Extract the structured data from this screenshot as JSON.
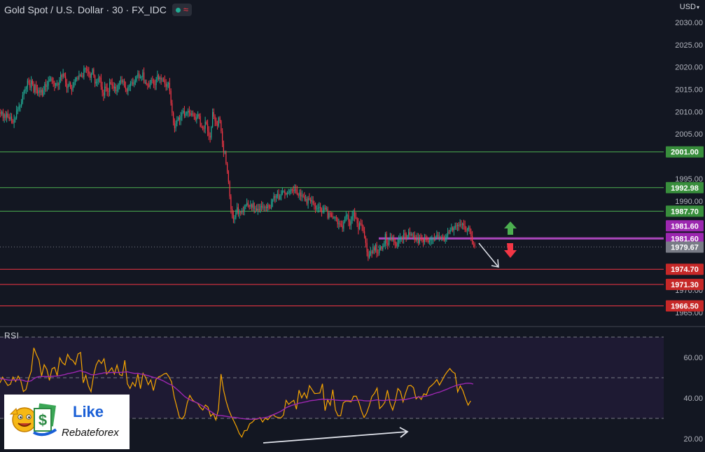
{
  "header": {
    "title": "Gold Spot / U.S. Dollar · 30 · FX_IDC",
    "currency": "USD",
    "colors": {
      "up": "#22ab94",
      "down": "#f23645",
      "background": "#131722"
    }
  },
  "chart_data": [
    {
      "type": "candlestick",
      "title": "Gold Spot / U.S. Dollar · 30 · FX_IDC",
      "y_axis_unit": "USD",
      "y_ticks": [
        2030.0,
        2025.0,
        2020.0,
        2015.0,
        2010.0,
        2005.0,
        1995.0,
        1990.0,
        1970.0,
        1965.0
      ],
      "ylim": [
        1963.5,
        2033
      ],
      "close_path": [
        2009.5,
        2010,
        2008.6,
        2009.4,
        2008.6,
        2009.6,
        2008.8,
        2008.3,
        2008.9,
        2008,
        2007.5,
        2008.2,
        2008.6,
        2010.2,
        2010.5,
        2011.2,
        2011.3,
        2012.2,
        2013.7,
        2014.6,
        2015.1,
        2015.5,
        2017,
        2016.4,
        2015.4,
        2017,
        2016.2,
        2014.4,
        2016,
        2014.9,
        2014.1,
        2014.8,
        2014.3,
        2014.9,
        2013.7,
        2014.8,
        2016.2,
        2015.6,
        2015.8,
        2016.9,
        2017.3,
        2017.4,
        2016.8,
        2016.5,
        2015.8,
        2016.3,
        2016.3,
        2016,
        2017.1,
        2018.2,
        2017.8,
        2018.5,
        2017.9,
        2016.5,
        2015.3,
        2015.8,
        2016.5,
        2015.3,
        2014.8,
        2015.6,
        2016.6,
        2017.3,
        2017.6,
        2017.4,
        2018.2,
        2018,
        2018.1,
        2017.8,
        2019.7,
        2019.7,
        2019.6,
        2019.1,
        2018.5,
        2017.6,
        2018.5,
        2019.5,
        2018.1,
        2016.3,
        2016.7,
        2016.7,
        2017.7,
        2017.6,
        2015.6,
        2014.3,
        2013.6,
        2015.6,
        2015.4,
        2014.6,
        2014.5,
        2016.6,
        2016.3,
        2015.8,
        2015.2,
        2015.6,
        2014.6,
        2014.9,
        2016.2,
        2016.3,
        2017.1,
        2016.6,
        2016.9,
        2015.6,
        2015.1,
        2014.5,
        2015.6,
        2015.7,
        2016.4,
        2016.6,
        2016.1,
        2016.7,
        2016.9,
        2017.9,
        2018.6,
        2017.6,
        2017.8,
        2017.8,
        2018.8,
        2016.6,
        2016.6,
        2016.1,
        2015.9,
        2015.6,
        2016.4,
        2017.1,
        2017,
        2016.1,
        2016,
        2017.2,
        2018.2,
        2017.3,
        2017.6,
        2017.2,
        2017.2,
        2017,
        2016.3,
        2015.6,
        2016.2,
        2016.4,
        2014.7,
        2011.9,
        2009.8,
        2007.5,
        2006.3,
        2007.3,
        2008.2,
        2008.7,
        2008.1,
        2009,
        2009.8,
        2010.2,
        2009.1,
        2009.6,
        2009.9,
        2010.2,
        2009.7,
        2009.2,
        2009.6,
        2009.4,
        2008.9,
        2008.2,
        2008.7,
        2009.4,
        2009,
        2006.7,
        2006.6,
        2006.3,
        2006.2,
        2007.7,
        2007.2,
        2005.7,
        2004.6,
        2004.2,
        2006.6,
        2009.9,
        2008.9,
        2007.9,
        2007.1,
        2006.9,
        2008.7,
        2007.9,
        2005.6,
        2002.8,
        2001,
        2001,
        1998.4,
        1996.6,
        1994.3,
        1991,
        1988.2,
        1986.8,
        1985.9,
        1986.3,
        1987.4,
        1988.6,
        1987.1,
        1987.5,
        1987.4,
        1987.8,
        1987.7,
        1988.8,
        1989,
        1989.6,
        1989,
        1988.7,
        1989.2,
        1988.5,
        1989.5,
        1988.2,
        1988.3,
        1987.9,
        1988.2,
        1987.9,
        1988.9,
        1988.6,
        1988.7,
        1988.6,
        1988.6,
        1988.4,
        1989.1,
        1988.6,
        1988.5,
        1989.8,
        1990.3,
        1991.1,
        1990.7,
        1991.1,
        1991.6,
        1990.4,
        1991.2,
        1991.5,
        1992.2,
        1992.2,
        1991.7,
        1991.5,
        1991.8,
        1991.9,
        1992.2,
        1992.6,
        1992.5,
        1992.2,
        1992.6,
        1992.5,
        1991.5,
        1991.2,
        1991.9,
        1991,
        1991.2,
        1991.1,
        1990.4,
        1990.4,
        1989.4,
        1990.6,
        1990.3,
        1989.9,
        1990.1,
        1989.5,
        1988.9,
        1988.3,
        1988.3,
        1988.4,
        1988.7,
        1988.3,
        1987.5,
        1987.8,
        1988.5,
        1988.2,
        1988.3,
        1986.2,
        1987.3,
        1987,
        1986.6,
        1986.3,
        1986.3,
        1986.3,
        1986.1,
        1984.8,
        1985,
        1984.8,
        1984.5,
        1983.8,
        1985.3,
        1986.3,
        1986.8,
        1986.8,
        1985.4,
        1984.5,
        1985.8,
        1986.6,
        1987.5,
        1986.3,
        1986.1,
        1985,
        1983.7,
        1985,
        1984.9,
        1984.4,
        1983.2,
        1981.9,
        1980.6,
        1978.6,
        1977.3,
        1978,
        1978.7,
        1978.3,
        1979.6,
        1978.9,
        1980.2,
        1978.4,
        1978.3,
        1979.2,
        1979.6,
        1979.2,
        1979.9,
        1980.3,
        1982.6,
        1980.5,
        1980.2,
        1981.4,
        1981.7,
        1981.2,
        1981.7,
        1980.9,
        1980.5,
        1979.9,
        1980.7,
        1981.3,
        1981.8,
        1981.8,
        1981.6,
        1982.7,
        1982.6,
        1981.8,
        1982.2,
        1983,
        1982.4,
        1982.6,
        1982.2,
        1982.2,
        1981.5,
        1981.2,
        1981.8,
        1980.6,
        1981.7,
        1981.5,
        1981.4,
        1980.8,
        1981.5,
        1981.4,
        1981.2,
        1980.8,
        1981.1,
        1981.4,
        1981.4,
        1981.6,
        1981.3,
        1981.9,
        1982.4,
        1981.9,
        1981.9,
        1981.8,
        1981.9,
        1981.8,
        1981.1,
        1981.6,
        1982.3,
        1983.1,
        1983,
        1983.5,
        1984.1,
        1983.4,
        1983.9,
        1984.5,
        1984.4,
        1984.6,
        1984.5,
        1984.8,
        1984.7,
        1984.9,
        1984.5,
        1983.6,
        1983.4,
        1983.7,
        1984.1,
        1983.1,
        1982.1,
        1980.4,
        1980.3,
        1979.7
      ],
      "horizontal_levels": [
        {
          "value": 2001.0,
          "label": "2001.00",
          "color": "#4caf50",
          "role": "resistance"
        },
        {
          "value": 1992.98,
          "label": "1992.98",
          "color": "#4caf50",
          "role": "resistance"
        },
        {
          "value": 1987.7,
          "label": "1987.70",
          "color": "#4caf50",
          "role": "resistance"
        },
        {
          "value": 1981.6,
          "label": "1981.60",
          "color": "#ab47bc",
          "role": "pivot"
        },
        {
          "value": 1974.7,
          "label": "1974.70",
          "color": "#f23645",
          "role": "support"
        },
        {
          "value": 1971.3,
          "label": "1971.30",
          "color": "#f23645",
          "role": "support"
        },
        {
          "value": 1966.5,
          "label": "1966.50",
          "color": "#f23645",
          "role": "support"
        }
      ],
      "price_labels": [
        {
          "value": "1981.60",
          "color": "#9c27b0"
        },
        {
          "value": "1979.67",
          "color": "#787b86",
          "role": "last-price"
        }
      ],
      "annotations": [
        "green-up-arrow",
        "red-down-arrow",
        "white-down-arrow"
      ]
    },
    {
      "type": "line",
      "title": "RSI",
      "y_ticks": [
        60.0,
        40.0,
        20.0
      ],
      "ylim": [
        17.5,
        72
      ],
      "band": [
        30,
        70
      ],
      "midline": 50,
      "series": [
        {
          "color": "#f7a600",
          "values": [
            47.5,
            50.3,
            48.2,
            46.2,
            46.8,
            50.3,
            48.1,
            50.8,
            48.5,
            43.2,
            44.2,
            49.5,
            53.2,
            64.7,
            61.4,
            58.7,
            50.8,
            56.4,
            54.1,
            48.7,
            54.4,
            55.1,
            51,
            59.8,
            57.4,
            56.3,
            61.5,
            59.2,
            58.5,
            56.5,
            61.7,
            62.4,
            47.5,
            51.2,
            45.9,
            43.1,
            51.1,
            56.3,
            58.7,
            57,
            59.3,
            51.8,
            53.2,
            54.9,
            51.8,
            56.2,
            51.5,
            51,
            58.6,
            47,
            44.7,
            47.7,
            45.8,
            51.8,
            44.6,
            52.2,
            50.2,
            46.6,
            48.9,
            43.7,
            49.2,
            50.4,
            50.9,
            51.8,
            52.2,
            50.4,
            47.9,
            40.4,
            35.6,
            30.5,
            29.7,
            31.4,
            37.6,
            41.3,
            39.1,
            38,
            37.4,
            35.4,
            34.1,
            36.6,
            35.5,
            31,
            32.5,
            29.2,
            34.5,
            51.8,
            43.8,
            38.3,
            34,
            31,
            28.5,
            25.8,
            22.6,
            20.8,
            23.9,
            24.1,
            27.3,
            28.1,
            29.5,
            29.7,
            30.4,
            28.2,
            30.1,
            29.3,
            30.9,
            31.8,
            30.8,
            30.4,
            30.2,
            31.6,
            38.9,
            36.9,
            38,
            38.9,
            34.5,
            43.9,
            40.1,
            42.6,
            39.9,
            46.1,
            44.1,
            42.2,
            42.3,
            42.5,
            47,
            33.8,
            39.2,
            36.5,
            44.1,
            34.1,
            31.2,
            31.3,
            37.6,
            38.5,
            38.4,
            38.1,
            40.9,
            40.9,
            37.9,
            33.7,
            30.4,
            32.6,
            36.2,
            40.7,
            42.3,
            44.9,
            34.8,
            36.1,
            37.9,
            43.9,
            37.5,
            34.1,
            38.3,
            44.7,
            43.2,
            38.1,
            42.5,
            46,
            46.2,
            45.1,
            39.6,
            40.8,
            39.3,
            42.1,
            41.6,
            45.1,
            46.2,
            47.4,
            49.1,
            46.4,
            48.7,
            51.1,
            53,
            54.5,
            52.9,
            52.1,
            43,
            46,
            43.7,
            39.8,
            36.5,
            38.6
          ]
        },
        {
          "color": "#9c27b0",
          "values": [
            49.5,
            49.4,
            49.2,
            48.9,
            48.8,
            48.9,
            48.9,
            49,
            49,
            48.7,
            48.2,
            48.2,
            48.5,
            49.5,
            50.2,
            50.6,
            50.6,
            50.6,
            50.6,
            50.6,
            50.7,
            50.8,
            50.8,
            51,
            51.3,
            51.6,
            52,
            52.2,
            52.5,
            52.8,
            53.2,
            53.5,
            52.9,
            52.7,
            52.1,
            51.5,
            51.4,
            51.6,
            51.9,
            52.1,
            52.4,
            52.4,
            52.5,
            52.6,
            52.6,
            52.6,
            52.6,
            52.7,
            52.8,
            52.9,
            52.6,
            52.3,
            52.1,
            52.2,
            51.8,
            51.7,
            51.3,
            51,
            50.6,
            50.2,
            49.9,
            49.4,
            48.9,
            48.3,
            47.6,
            46.9,
            46.4,
            45.4,
            44.3,
            43.2,
            42,
            40.8,
            39.9,
            39.2,
            38.5,
            38.1,
            37.5,
            36.8,
            36,
            35.2,
            34.2,
            33.4,
            32.6,
            31.8,
            31.4,
            31.4,
            31.2,
            31,
            30.8,
            30.6,
            30.5,
            30.3,
            30.1,
            29.9,
            29.8,
            29.6,
            29.6,
            29.6,
            29.7,
            29.9,
            30.1,
            30.2,
            30.4,
            30.7,
            31.3,
            31.8,
            32.3,
            32.9,
            33.5,
            34.3,
            35.2,
            35.8,
            36.3,
            36.7,
            37,
            37.5,
            37.7,
            38,
            38.2,
            38.6,
            38.8,
            38.9,
            39.1,
            39.3,
            39.5,
            39.3,
            39.3,
            39.1,
            39.3,
            39,
            38.9,
            38.8,
            38.8,
            38.8,
            38.8,
            38.7,
            38.8,
            38.9,
            39,
            38.9,
            38.7,
            38.6,
            38.6,
            38.7,
            38.9,
            39.1,
            38.9,
            38.8,
            38.8,
            39,
            39.1,
            39,
            38.9,
            39,
            39.1,
            39.1,
            39.3,
            39.6,
            39.9,
            40.2,
            40.4,
            40.5,
            40.6,
            40.8,
            41,
            41.3,
            41.7,
            42.2,
            42.6,
            42.9,
            43.4,
            43.9,
            44.4,
            45,
            45.5,
            46,
            46.4,
            46.7,
            46.9,
            47.2,
            47.3,
            47.2,
            46.9
          ]
        }
      ],
      "annotations": [
        "white-rising-arrow"
      ]
    }
  ],
  "rsi": {
    "label": "RSI"
  },
  "watermark": {
    "line1": "Like",
    "line2": "Rebateforex"
  }
}
